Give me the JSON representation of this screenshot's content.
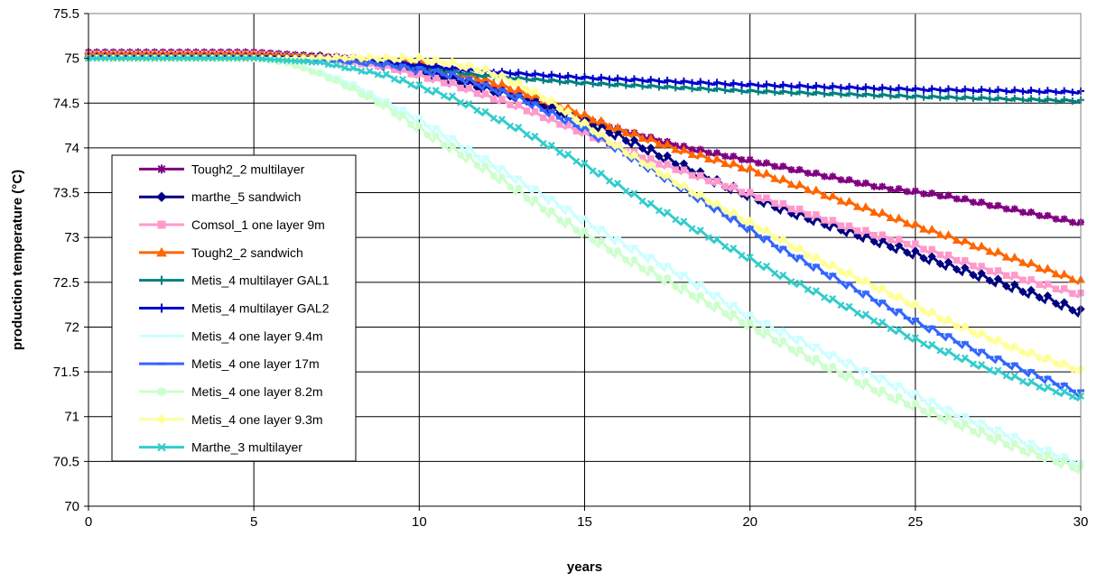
{
  "chart_data": {
    "type": "line",
    "title": "",
    "xlabel": "years",
    "ylabel": "production temperature (°C)",
    "xlim": [
      0,
      30
    ],
    "ylim": [
      70,
      75.5
    ],
    "xticks": [
      0,
      5,
      10,
      15,
      20,
      25,
      30
    ],
    "yticks": [
      70,
      70.5,
      71,
      71.5,
      72,
      72.5,
      73,
      73.5,
      74,
      74.5,
      75,
      75.5
    ],
    "grid": true,
    "legend_position": "left",
    "series": [
      {
        "name": "Tough2_2 multilayer",
        "color": "#800080",
        "marker": "star",
        "x": [
          0,
          5,
          8,
          10,
          12,
          14,
          16,
          18,
          20,
          22,
          24,
          26,
          28,
          30
        ],
        "y": [
          75.07,
          75.07,
          75.0,
          74.88,
          74.7,
          74.45,
          74.2,
          74.0,
          73.85,
          73.7,
          73.55,
          73.45,
          73.3,
          73.15
        ],
        "amp": 0.04
      },
      {
        "name": "marthe_5 sandwich",
        "color": "#000080",
        "marker": "diamond",
        "x": [
          0,
          5,
          7,
          9,
          11,
          13,
          15,
          17,
          19,
          21,
          23,
          25,
          27,
          29,
          30
        ],
        "y": [
          75.05,
          75.05,
          75.02,
          74.9,
          74.75,
          74.55,
          74.3,
          73.95,
          73.6,
          73.3,
          73.05,
          72.8,
          72.55,
          72.3,
          72.15
        ],
        "amp": 0.1
      },
      {
        "name": "Comsol_1 one layer 9m",
        "color": "#FF99CC",
        "marker": "square",
        "x": [
          0,
          5,
          7,
          9,
          11,
          13,
          15,
          17,
          19,
          21,
          23,
          25,
          27,
          29,
          30
        ],
        "y": [
          75.05,
          75.05,
          75.0,
          74.9,
          74.7,
          74.45,
          74.15,
          73.85,
          73.6,
          73.35,
          73.1,
          72.9,
          72.65,
          72.45,
          72.35
        ],
        "amp": 0.06
      },
      {
        "name": "Tough2_2 sandwich",
        "color": "#FF6600",
        "marker": "triangle",
        "x": [
          0,
          5,
          8,
          10,
          12,
          14,
          16,
          18,
          20,
          22,
          24,
          26,
          28,
          30
        ],
        "y": [
          75.05,
          75.05,
          75.0,
          74.95,
          74.75,
          74.5,
          74.2,
          73.95,
          73.75,
          73.5,
          73.25,
          73.0,
          72.75,
          72.5
        ],
        "amp": 0.06
      },
      {
        "name": "Metis_4 multilayer GAL1",
        "color": "#008080",
        "marker": "plus",
        "x": [
          0,
          5,
          8,
          10,
          12,
          15,
          20,
          25,
          30
        ],
        "y": [
          75.02,
          75.02,
          75.0,
          74.9,
          74.8,
          74.72,
          74.63,
          74.57,
          74.52
        ],
        "amp": 0.03
      },
      {
        "name": "Metis_4 multilayer GAL2",
        "color": "#0000CC",
        "marker": "plus",
        "x": [
          0,
          5,
          8,
          10,
          12,
          15,
          20,
          25,
          30
        ],
        "y": [
          75.02,
          75.02,
          75.0,
          74.92,
          74.85,
          74.78,
          74.7,
          74.65,
          74.62
        ],
        "amp": 0.03
      },
      {
        "name": "Metis_4 one layer 9.4m",
        "color": "#CCFFFF",
        "marker": "dash",
        "x": [
          0,
          5,
          6,
          7,
          8,
          9,
          10,
          12,
          14,
          16,
          18,
          20,
          22,
          24,
          26,
          28,
          30
        ],
        "y": [
          75.0,
          75.0,
          74.95,
          74.85,
          74.7,
          74.5,
          74.3,
          73.85,
          73.4,
          72.95,
          72.55,
          72.1,
          71.75,
          71.4,
          71.05,
          70.75,
          70.45
        ],
        "amp": 0.1
      },
      {
        "name": "Metis_4 one layer 17m",
        "color": "#3366FF",
        "marker": "dash",
        "x": [
          0,
          5,
          7,
          9,
          11,
          13,
          15,
          17,
          19,
          21,
          23,
          25,
          27,
          29,
          30
        ],
        "y": [
          75.0,
          75.0,
          74.98,
          74.92,
          74.8,
          74.55,
          74.2,
          73.75,
          73.3,
          72.85,
          72.45,
          72.05,
          71.7,
          71.4,
          71.25
        ],
        "amp": 0.08
      },
      {
        "name": "Metis_4 one layer 8.2m",
        "color": "#CCFFCC",
        "marker": "circle",
        "x": [
          0,
          5,
          6,
          7,
          8,
          9,
          10,
          12,
          14,
          16,
          18,
          20,
          22,
          24,
          26,
          28,
          30
        ],
        "y": [
          75.0,
          75.0,
          74.95,
          74.82,
          74.65,
          74.45,
          74.2,
          73.75,
          73.25,
          72.8,
          72.4,
          72.0,
          71.6,
          71.25,
          70.95,
          70.65,
          70.4
        ],
        "amp": 0.1
      },
      {
        "name": "Metis_4 one layer 9.3m",
        "color": "#FFFF99",
        "marker": "diamond",
        "x": [
          0,
          5,
          8,
          10,
          11,
          12,
          13,
          14,
          16,
          18,
          20,
          22,
          24,
          26,
          28,
          30
        ],
        "y": [
          75.0,
          75.0,
          75.0,
          74.98,
          74.93,
          74.85,
          74.7,
          74.5,
          74.0,
          73.55,
          73.15,
          72.75,
          72.4,
          72.05,
          71.75,
          71.5
        ],
        "amp": 0.07
      },
      {
        "name": "Marthe_3 multilayer",
        "color": "#33CCCC",
        "marker": "x",
        "x": [
          0,
          5,
          7,
          9,
          11,
          13,
          15,
          17,
          19,
          21,
          23,
          25,
          27,
          29,
          30
        ],
        "y": [
          75.0,
          75.0,
          74.95,
          74.8,
          74.55,
          74.2,
          73.8,
          73.35,
          72.95,
          72.55,
          72.2,
          71.85,
          71.55,
          71.3,
          71.2
        ],
        "amp": 0.06
      }
    ]
  }
}
